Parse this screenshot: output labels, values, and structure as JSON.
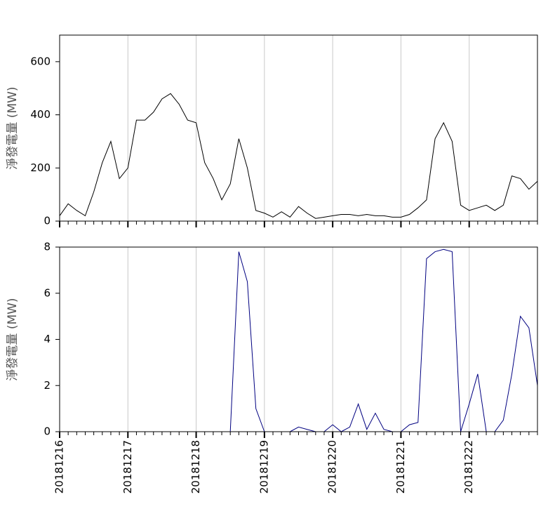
{
  "chart_data": [
    {
      "type": "line",
      "ylabel": "淨發電量 (MW)",
      "series": [
        {
          "name": null,
          "color": "#000000",
          "values": [
            20,
            65,
            40,
            20,
            110,
            220,
            300,
            160,
            200,
            380,
            380,
            410,
            460,
            480,
            440,
            380,
            370,
            220,
            160,
            80,
            140,
            310,
            200,
            40,
            30,
            15,
            35,
            15,
            55,
            30,
            10,
            15,
            20,
            25,
            25,
            20,
            25,
            20,
            20,
            15,
            15,
            25,
            50,
            80,
            310,
            370,
            300,
            60,
            40,
            50,
            60,
            40,
            60,
            170,
            160,
            120,
            150
          ]
        }
      ],
      "xlim": [
        0,
        56
      ],
      "xticks": [
        0,
        8,
        16,
        24,
        32,
        40,
        48
      ],
      "ylim": [
        0,
        700
      ],
      "yticks": [
        0,
        200,
        400,
        600
      ],
      "grid": true
    },
    {
      "type": "line",
      "ylabel": "淨發電量 (MW)",
      "series": [
        {
          "name": null,
          "color": "#000080",
          "values": [
            0,
            0,
            0,
            0,
            0,
            0,
            0,
            0,
            0,
            0,
            0,
            0,
            0,
            0,
            0,
            0,
            0,
            0,
            0,
            0,
            0,
            7.8,
            6.5,
            1.0,
            0,
            0,
            0,
            0,
            0.2,
            0.1,
            0,
            0,
            0.3,
            0,
            0.2,
            1.2,
            0.1,
            0.8,
            0.1,
            0,
            0,
            0.3,
            0.4,
            7.5,
            7.8,
            7.9,
            7.8,
            0,
            1.2,
            2.5,
            0,
            0,
            0.5,
            2.5,
            5.0,
            4.5,
            2.0
          ]
        }
      ],
      "xlim": [
        0,
        56
      ],
      "xticks": [
        {
          "value": 0,
          "label": "20181216"
        },
        {
          "value": 8,
          "label": "20181217"
        },
        {
          "value": 16,
          "label": "20181218"
        },
        {
          "value": 24,
          "label": "20181219"
        },
        {
          "value": 32,
          "label": "20181220"
        },
        {
          "value": 40,
          "label": "20181221"
        },
        {
          "value": 48,
          "label": "20181222"
        }
      ],
      "ylim": [
        0,
        8
      ],
      "yticks": [
        0,
        2,
        4,
        6,
        8
      ],
      "grid": true
    }
  ]
}
